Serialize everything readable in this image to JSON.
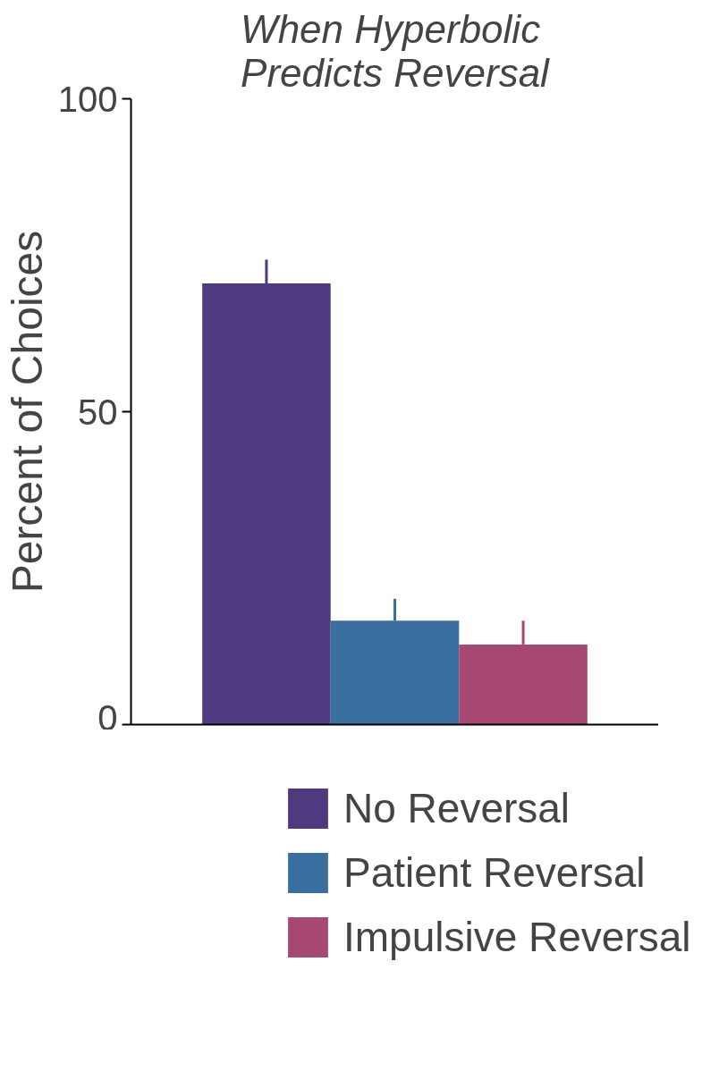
{
  "chart_data": {
    "type": "bar",
    "title": "When Hyperbolic\nPredicts Reversal",
    "ylabel": "Percent of Choices",
    "categories": [
      null
    ],
    "series": [
      {
        "name": "No Reversal",
        "color": "#4f3a80",
        "values": [
          70.5
        ],
        "errors": [
          [
            70.5,
            74.3
          ]
        ]
      },
      {
        "name": "Patient Reversal",
        "color": "#3a70a0",
        "values": [
          16.6
        ],
        "errors": [
          [
            16.6,
            20.1
          ]
        ]
      },
      {
        "name": "Impulsive Reversal",
        "color": "#a64872",
        "values": [
          12.8
        ],
        "errors": [
          [
            12.8,
            16.6
          ]
        ]
      }
    ],
    "ylim": [
      0,
      100
    ],
    "yticks": [
      0,
      50,
      100
    ],
    "grid": false,
    "legend": "bottom",
    "tick_labels": "y"
  }
}
